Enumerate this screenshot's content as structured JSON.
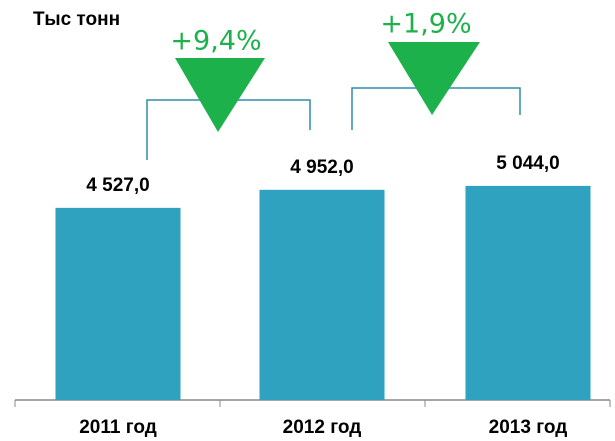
{
  "chart_data": {
    "type": "bar",
    "title": "Тыс тонн",
    "categories": [
      "2011 год",
      "2012 год",
      "2013 год"
    ],
    "values": [
      4527.0,
      4952.0,
      5044.0
    ],
    "value_labels": [
      "4 527,0",
      "4 952,0",
      "5 044,0"
    ],
    "color": "#2ea2bf",
    "ylim": [
      0,
      9000
    ],
    "annotations": [
      "+9,4%",
      "+1,9%"
    ]
  }
}
